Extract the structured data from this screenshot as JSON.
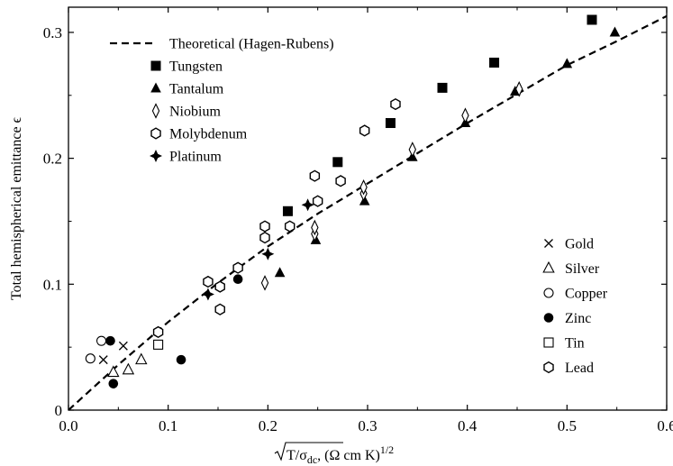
{
  "chart_data": {
    "type": "scatter",
    "xlabel_radicand": "T/σ",
    "xlabel_subscript": "dc",
    "xlabel_units": ",  (Ω cm K)",
    "xlabel_exponent": "1/2",
    "ylabel": "Total hemispherical emittance  ϵ",
    "xlim": [
      0,
      0.6
    ],
    "ylim": [
      0,
      0.32
    ],
    "xticks": [
      "0.0",
      "0.1",
      "0.2",
      "0.3",
      "0.4",
      "0.5",
      "0.6"
    ],
    "yticks": [
      "0",
      "0.1",
      "0.2",
      "0.3"
    ],
    "grid": false,
    "legend_placement": [
      "top-left",
      "bottom-right"
    ],
    "theory": {
      "name": "Theoretical (Hagen-Rubens)",
      "style": "dashed",
      "x": [
        0,
        0.05,
        0.1,
        0.15,
        0.2,
        0.25,
        0.3,
        0.35,
        0.4,
        0.45,
        0.5,
        0.55,
        0.6
      ],
      "y": [
        0,
        0.036,
        0.07,
        0.101,
        0.13,
        0.156,
        0.18,
        0.204,
        0.228,
        0.251,
        0.274,
        0.293,
        0.313
      ]
    },
    "series": [
      {
        "name": "Tungsten",
        "marker": "square-filled",
        "points": [
          [
            0.22,
            0.158
          ],
          [
            0.27,
            0.197
          ],
          [
            0.323,
            0.228
          ],
          [
            0.375,
            0.256
          ],
          [
            0.427,
            0.276
          ],
          [
            0.525,
            0.31
          ]
        ]
      },
      {
        "name": "Tantalum",
        "marker": "triangle-filled",
        "points": [
          [
            0.212,
            0.109
          ],
          [
            0.248,
            0.135
          ],
          [
            0.297,
            0.166
          ],
          [
            0.345,
            0.201
          ],
          [
            0.398,
            0.228
          ],
          [
            0.448,
            0.253
          ],
          [
            0.5,
            0.275
          ],
          [
            0.548,
            0.3
          ]
        ]
      },
      {
        "name": "Niobium",
        "marker": "diamond-open",
        "points": [
          [
            0.197,
            0.101
          ],
          [
            0.247,
            0.14
          ],
          [
            0.247,
            0.145
          ],
          [
            0.296,
            0.172
          ],
          [
            0.296,
            0.177
          ],
          [
            0.345,
            0.207
          ],
          [
            0.398,
            0.234
          ],
          [
            0.452,
            0.255
          ]
        ]
      },
      {
        "name": "Molybdenum",
        "marker": "hexagon-open",
        "points": [
          [
            0.14,
            0.102
          ],
          [
            0.152,
            0.098
          ],
          [
            0.17,
            0.113
          ],
          [
            0.197,
            0.137
          ],
          [
            0.197,
            0.146
          ],
          [
            0.222,
            0.146
          ],
          [
            0.247,
            0.186
          ],
          [
            0.25,
            0.166
          ],
          [
            0.273,
            0.182
          ],
          [
            0.297,
            0.222
          ],
          [
            0.328,
            0.243
          ]
        ]
      },
      {
        "name": "Platinum",
        "marker": "star4-filled",
        "points": [
          [
            0.14,
            0.092
          ],
          [
            0.2,
            0.124
          ],
          [
            0.24,
            0.163
          ]
        ]
      },
      {
        "name": "Gold",
        "marker": "cross",
        "points": [
          [
            0.035,
            0.04
          ],
          [
            0.055,
            0.051
          ]
        ]
      },
      {
        "name": "Silver",
        "marker": "triangle-open",
        "points": [
          [
            0.045,
            0.03
          ],
          [
            0.06,
            0.032
          ],
          [
            0.073,
            0.04
          ]
        ]
      },
      {
        "name": "Copper",
        "marker": "circle-open",
        "points": [
          [
            0.022,
            0.041
          ],
          [
            0.033,
            0.055
          ]
        ]
      },
      {
        "name": "Zinc",
        "marker": "circle-filled",
        "points": [
          [
            0.042,
            0.055
          ],
          [
            0.045,
            0.021
          ],
          [
            0.113,
            0.04
          ],
          [
            0.17,
            0.104
          ]
        ]
      },
      {
        "name": "Tin",
        "marker": "square-open",
        "points": [
          [
            0.09,
            0.052
          ]
        ]
      },
      {
        "name": "Lead",
        "marker": "hexagon-open",
        "points": [
          [
            0.09,
            0.062
          ],
          [
            0.152,
            0.08
          ]
        ]
      }
    ],
    "legend_top": [
      "Theoretical (Hagen-Rubens)",
      "Tungsten",
      "Tantalum",
      "Niobium",
      "Molybdenum",
      "Platinum"
    ],
    "legend_bottom": [
      "Gold",
      "Silver",
      "Copper",
      "Zinc",
      "Tin",
      "Lead"
    ]
  }
}
